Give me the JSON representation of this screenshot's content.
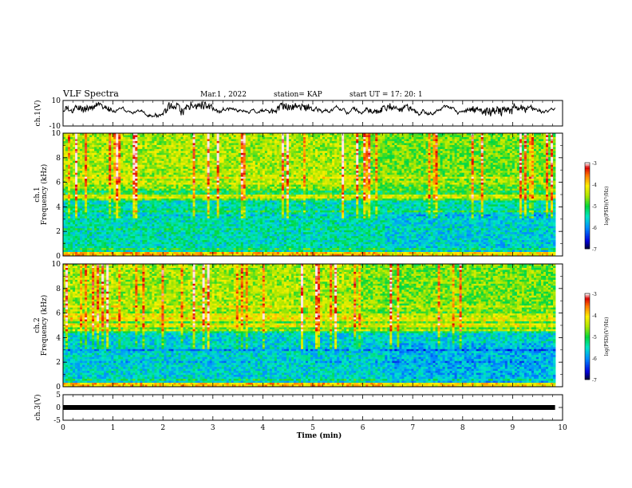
{
  "header": {
    "title": "VLF Spectra",
    "date": "Mar.1 , 2022",
    "station": "station= KAP",
    "start": "start UT = 17: 20: 1"
  },
  "chart_data": [
    {
      "type": "line",
      "panel": "ch1-waveform",
      "ylabel": "ch.1(V)",
      "ylim": [
        -10,
        10
      ],
      "yticklabels": [
        "-10",
        "10"
      ],
      "xlim": [
        0,
        10
      ],
      "trace_range_min": [
        0,
        9.85
      ],
      "approx_level_V": [
        0,
        4
      ],
      "color": "#000000"
    },
    {
      "type": "heatmap",
      "panel": "ch1-spectrogram",
      "ylabel": "ch.1\nFrequency (kHz)",
      "ylabel_line1": "ch.1",
      "ylabel_line2": "Frequency (kHz)",
      "ylim": [
        0,
        10
      ],
      "yticklabels": [
        "0",
        "2",
        "4",
        "6",
        "8",
        "10"
      ],
      "xlim": [
        0,
        10
      ],
      "data_range_min": [
        0,
        9.85
      ],
      "colorbar": {
        "label": "log(PSD)(V²/Hz)",
        "range": [
          -7,
          -3
        ],
        "ticks": [
          "-3",
          "-4",
          "-5",
          "-6",
          "-7"
        ]
      }
    },
    {
      "type": "heatmap",
      "panel": "ch2-spectrogram",
      "ylabel": "ch.2\nFrequency (kHz)",
      "ylabel_line1": "ch.2",
      "ylabel_line2": "Frequency (kHz)",
      "ylim": [
        0,
        10
      ],
      "yticklabels": [
        "0",
        "2",
        "4",
        "6",
        "8",
        "10"
      ],
      "xlim": [
        0,
        10
      ],
      "data_range_min": [
        0,
        9.85
      ],
      "colorbar": {
        "label": "log(PSD)(V²/Hz)",
        "range": [
          -7,
          -3
        ],
        "ticks": [
          "-3",
          "-4",
          "-5",
          "-6",
          "-7"
        ]
      }
    },
    {
      "type": "line",
      "panel": "ch3-waveform",
      "ylabel": "ch.3(V)",
      "ylim": [
        -5,
        5
      ],
      "yticklabels": [
        "-5",
        "0",
        "5"
      ],
      "xlim": [
        0,
        10
      ],
      "approx_level_V": 0,
      "color": "#000000"
    }
  ],
  "xaxis": {
    "label": "Time (min)",
    "ticklabels": [
      "0",
      "1",
      "2",
      "3",
      "4",
      "5",
      "6",
      "7",
      "8",
      "9",
      "10"
    ]
  }
}
